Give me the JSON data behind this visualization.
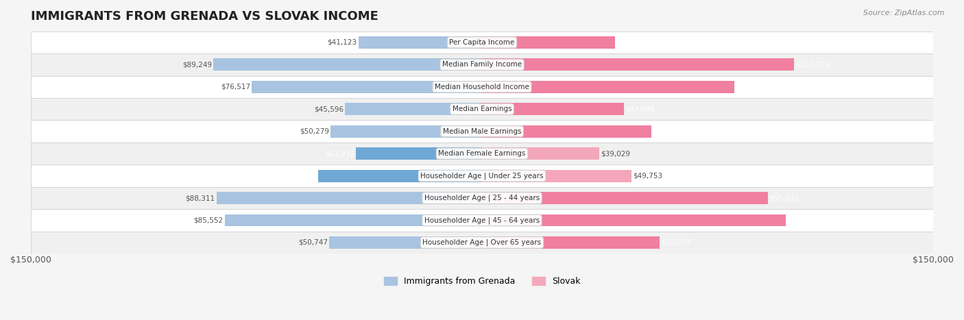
{
  "title": "IMMIGRANTS FROM GRENADA VS SLOVAK INCOME",
  "source": "Source: ZipAtlas.com",
  "categories": [
    "Per Capita Income",
    "Median Family Income",
    "Median Household Income",
    "Median Earnings",
    "Median Male Earnings",
    "Median Female Earnings",
    "Householder Age | Under 25 years",
    "Householder Age | 25 - 44 years",
    "Householder Age | 45 - 64 years",
    "Householder Age | Over 65 years"
  ],
  "grenada_values": [
    41123,
    89249,
    76517,
    45596,
    50279,
    41932,
    54538,
    88311,
    85552,
    50747
  ],
  "slovak_values": [
    44229,
    103729,
    83798,
    47095,
    56306,
    39029,
    49753,
    95032,
    101029,
    59039
  ],
  "grenada_color_light": "#a8c4e0",
  "grenada_color_dark": "#6fa8d4",
  "slovak_color_light": "#f4a7bb",
  "slovak_color_dark": "#f07fa0",
  "bar_height": 0.55,
  "xlim": 150000,
  "bg_color": "#f5f5f5",
  "row_bg_color": "#ffffff",
  "row_alt_color": "#f0f0f0",
  "legend_grenada": "Immigrants from Grenada",
  "legend_slovak": "Slovak",
  "axis_label_left": "$150,000",
  "axis_label_right": "$150,000"
}
